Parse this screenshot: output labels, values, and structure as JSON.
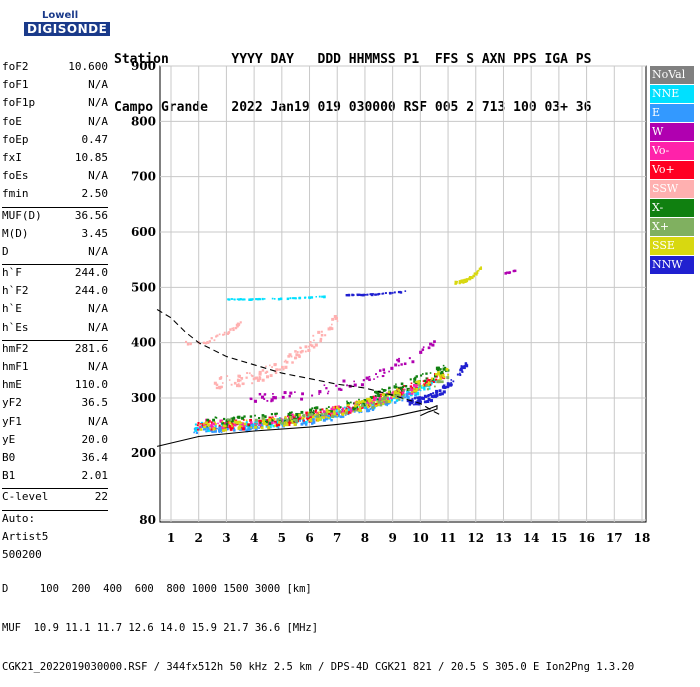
{
  "logo": {
    "line1": "Lowell",
    "line2": "DIGISONDE"
  },
  "header": {
    "labels": "Station        YYYY DAY   DDD HHMMSS P1  FFS S AXN PPS IGA PS",
    "values": "Campo Grande   2022 Jan19 019 030000 RSF 005 2 713 100 03+ 36"
  },
  "params": {
    "group1": [
      {
        "name": "foF2",
        "value": "10.600"
      },
      {
        "name": "foF1",
        "value": "N/A"
      },
      {
        "name": "foF1p",
        "value": "N/A"
      },
      {
        "name": "foE",
        "value": "N/A"
      },
      {
        "name": "foEp",
        "value": "0.47"
      },
      {
        "name": "fxI",
        "value": "10.85"
      },
      {
        "name": "foEs",
        "value": "N/A"
      },
      {
        "name": "fmin",
        "value": "2.50"
      }
    ],
    "group2": [
      {
        "name": "MUF(D)",
        "value": "36.56"
      },
      {
        "name": "M(D)",
        "value": "3.45"
      },
      {
        "name": "D",
        "value": "N/A"
      }
    ],
    "group3": [
      {
        "name": "h`F",
        "value": "244.0"
      },
      {
        "name": "h`F2",
        "value": "244.0"
      },
      {
        "name": "h`E",
        "value": "N/A"
      },
      {
        "name": "h`Es",
        "value": "N/A"
      }
    ],
    "group4": [
      {
        "name": "hmF2",
        "value": "281.6"
      },
      {
        "name": "hmF1",
        "value": "N/A"
      },
      {
        "name": "hmE",
        "value": "110.0"
      },
      {
        "name": "yF2",
        "value": "36.5"
      },
      {
        "name": "yF1",
        "value": "N/A"
      },
      {
        "name": "yE",
        "value": "20.0"
      },
      {
        "name": "B0",
        "value": "36.4"
      },
      {
        "name": "B1",
        "value": "2.01"
      }
    ],
    "clevel": {
      "name": "C-level",
      "value": "22"
    },
    "auto": [
      "Auto:",
      "Artist5",
      "500200"
    ]
  },
  "legend": [
    {
      "label": "NoVal",
      "color": "#808080"
    },
    {
      "label": "NNE",
      "color": "#00e0ff"
    },
    {
      "label": "E",
      "color": "#3399ff"
    },
    {
      "label": "W",
      "color": "#b000b0"
    },
    {
      "label": "Vo-",
      "color": "#ff22aa"
    },
    {
      "label": "Vo+",
      "color": "#ff0022"
    },
    {
      "label": "SSW",
      "color": "#ffb0b0"
    },
    {
      "label": "X-",
      "color": "#108010"
    },
    {
      "label": "X+",
      "color": "#80b060"
    },
    {
      "label": "SSE",
      "color": "#d8d810"
    },
    {
      "label": "NNW",
      "color": "#2020d0"
    }
  ],
  "bottom": {
    "line1": "D     100  200  400  600  800 1000 1500 3000 [km]",
    "line2": "MUF  10.9 11.1 11.7 12.6 14.0 15.9 21.7 36.6 [MHz]",
    "line3": "CGK21_2022019030000.RSF / 344fx512h 50 kHz 2.5 km / DPS-4D CGK21 821 / 20.5 S 305.0 E Ion2Png 1.3.20"
  },
  "chart_data": {
    "type": "scatter",
    "title": "",
    "xlabel": "",
    "ylabel": "",
    "xlim": [
      0.5,
      18.3
    ],
    "ylim": [
      80,
      905
    ],
    "x_ticks": [
      1,
      2,
      3,
      4,
      5,
      6,
      7,
      8,
      9,
      10,
      11,
      12,
      13,
      14,
      15,
      16,
      17,
      18
    ],
    "y_ticks": [
      80,
      200,
      300,
      400,
      500,
      600,
      700,
      800,
      900
    ],
    "grid": true,
    "curves": [
      {
        "name": "profile",
        "style": "solid",
        "points": [
          [
            0.5,
            212
          ],
          [
            2,
            230
          ],
          [
            4,
            240
          ],
          [
            6,
            247
          ],
          [
            7,
            252
          ],
          [
            8,
            258
          ],
          [
            9,
            266
          ],
          [
            10,
            277
          ],
          [
            10.3,
            280
          ],
          [
            10.6,
            286
          ],
          [
            10.6,
            280
          ],
          [
            10.3,
            275
          ],
          [
            10,
            268
          ]
        ]
      },
      {
        "name": "model",
        "style": "dashed",
        "points": [
          [
            0.5,
            460
          ],
          [
            1,
            445
          ],
          [
            1.5,
            420
          ],
          [
            2,
            400
          ],
          [
            3,
            375
          ],
          [
            4,
            360
          ],
          [
            5,
            345
          ],
          [
            6,
            335
          ],
          [
            7,
            325
          ],
          [
            8,
            318
          ],
          [
            9,
            305
          ],
          [
            10,
            290
          ],
          [
            10.5,
            275
          ],
          [
            10.7,
            270
          ]
        ]
      }
    ],
    "traces": [
      {
        "series": "NNE",
        "x": [
          1.8,
          10.5
        ],
        "h": [
          250,
          330
        ],
        "n": 230
      },
      {
        "series": "E",
        "x": [
          1.8,
          10.0
        ],
        "h": [
          245,
          315
        ],
        "n": 160
      },
      {
        "series": "Vo+",
        "x": [
          1.9,
          10.8
        ],
        "h": [
          252,
          345
        ],
        "n": 200
      },
      {
        "series": "Vo-",
        "x": [
          2.0,
          10.8
        ],
        "h": [
          255,
          340
        ],
        "n": 120
      },
      {
        "series": "X-",
        "x": [
          2.2,
          11.0
        ],
        "h": [
          258,
          360
        ],
        "n": 150
      },
      {
        "series": "SSE",
        "x": [
          2.0,
          11.0
        ],
        "h": [
          250,
          350
        ],
        "n": 180
      },
      {
        "series": "NNW",
        "x": [
          9.5,
          11.7
        ],
        "h": [
          295,
          370
        ],
        "n": 90
      },
      {
        "series": "W",
        "x": [
          3.5,
          10.5
        ],
        "h": [
          300,
          400
        ],
        "n": 70
      },
      {
        "series": "SSW",
        "x": [
          2.5,
          7.0
        ],
        "h": [
          330,
          450
        ],
        "n": 110
      },
      {
        "series": "X+",
        "x": [
          3.0,
          11.0
        ],
        "h": [
          260,
          340
        ],
        "n": 60
      }
    ],
    "streaks": [
      {
        "series": "NNE",
        "x": [
          3.0,
          6.5
        ],
        "h": [
          480,
          485
        ],
        "n": 50
      },
      {
        "series": "NNW",
        "x": [
          7.3,
          9.5
        ],
        "h": [
          488,
          495
        ],
        "n": 45
      },
      {
        "series": "SSE",
        "x": [
          11.2,
          12.2
        ],
        "h": [
          510,
          540
        ],
        "n": 45
      },
      {
        "series": "W",
        "x": [
          13.0,
          13.4
        ],
        "h": [
          528,
          533
        ],
        "n": 10
      },
      {
        "series": "SSW",
        "x": [
          1.5,
          3.5
        ],
        "h": [
          400,
          440
        ],
        "n": 40
      }
    ]
  }
}
